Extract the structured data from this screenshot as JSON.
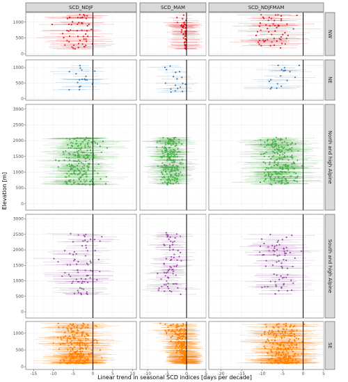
{
  "chart_data": {
    "type": "scatter",
    "title": "",
    "xlabel": "Linear trend in seasonal SCD indices [days per decade]",
    "ylabel": "Elevation [m]",
    "columns": [
      {
        "label": "SCD_NDJF",
        "xlim": [
          -17,
          11
        ],
        "xticks": [
          -15,
          -10,
          -5,
          0,
          5,
          10
        ]
      },
      {
        "label": "SCD_MAM",
        "xlim": [
          -12,
          5
        ],
        "xticks": [
          -10,
          -5,
          0,
          5
        ]
      },
      {
        "label": "SCD_NDJFMAM",
        "xlim": [
          -23,
          5
        ],
        "xticks": [
          -20,
          -15,
          -10,
          -5,
          0,
          5
        ]
      }
    ],
    "rows": [
      {
        "label": "NW",
        "color": "#e41a1c",
        "ylim": [
          -50,
          1300
        ],
        "yticks": [
          0,
          500,
          1000
        ],
        "center": [
          -4,
          -2,
          -7
        ],
        "elev_range": [
          150,
          1250
        ]
      },
      {
        "label": "NE",
        "color": "#377eb8",
        "ylim": [
          -50,
          1250
        ],
        "yticks": [
          0,
          500,
          1000
        ],
        "center": [
          -3,
          -3,
          -5
        ],
        "elev_range": [
          200,
          1100
        ]
      },
      {
        "label": "North and high Alpine",
        "color": "#4daf4a",
        "ylim": [
          -200,
          3150
        ],
        "yticks": [
          0,
          500,
          1000,
          1500,
          2000,
          2500,
          3000
        ],
        "center": [
          -3,
          -4,
          -6
        ],
        "elev_range": [
          600,
          2100
        ]
      },
      {
        "label": "South and high Alpine",
        "color": "#984ea3",
        "ylim": [
          -200,
          3150
        ],
        "yticks": [
          0,
          500,
          1000,
          1500,
          2000,
          2500,
          3000
        ],
        "center": [
          -3,
          -4,
          -6
        ],
        "elev_range": [
          550,
          2600
        ]
      },
      {
        "label": "SE",
        "color": "#ff7f00",
        "ylim": [
          -80,
          1350
        ],
        "yticks": [
          0,
          500,
          1000
        ],
        "center": [
          -4,
          -1,
          -5
        ],
        "elev_range": [
          100,
          1300
        ]
      }
    ],
    "vline_x": 0,
    "grid": true,
    "legend": "none"
  }
}
